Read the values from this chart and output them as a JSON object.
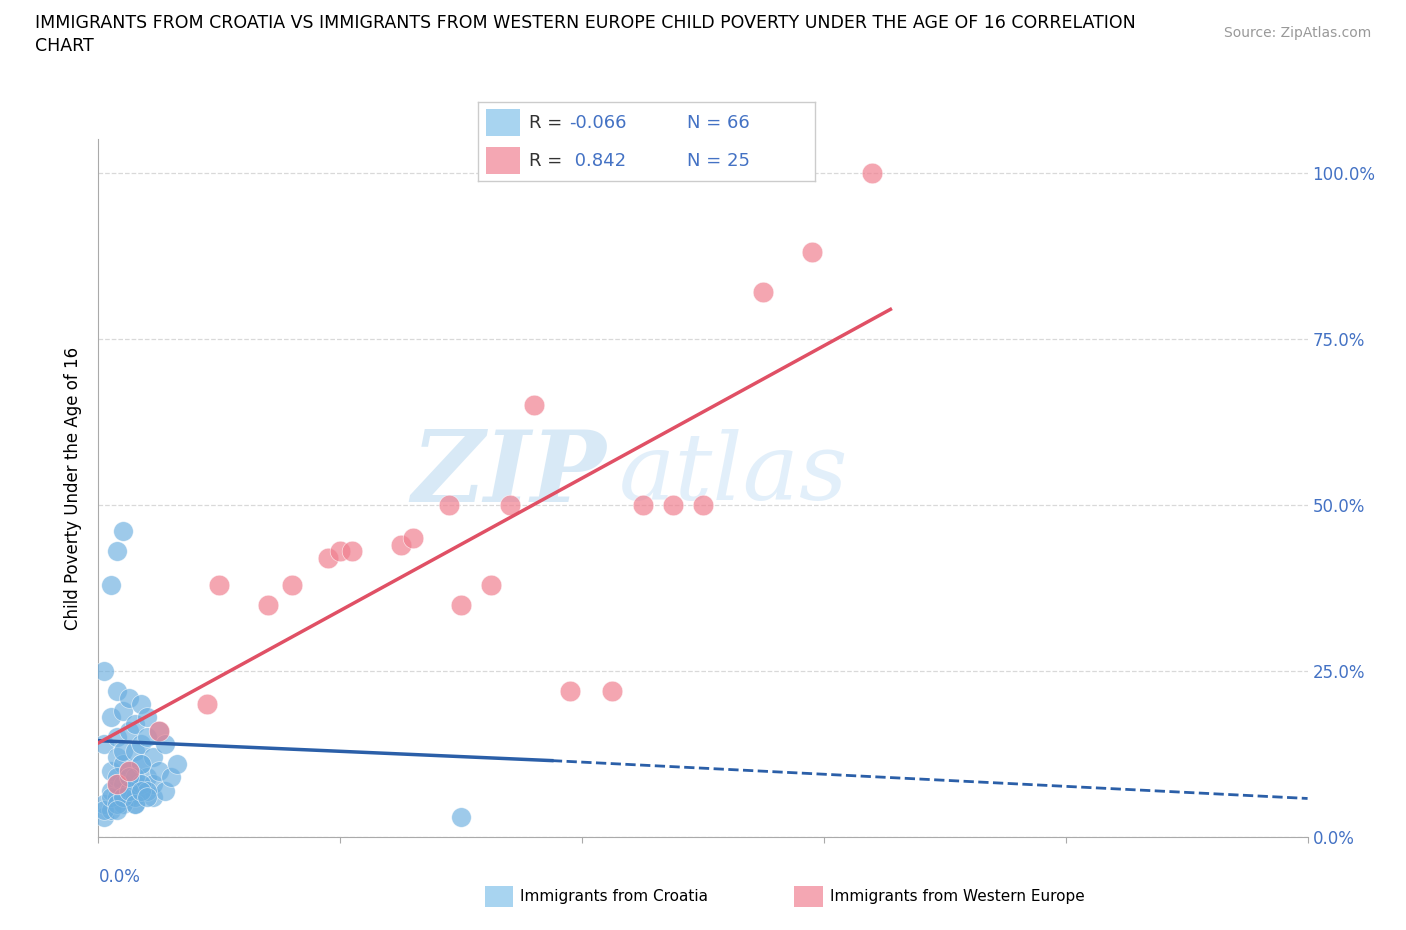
{
  "title_line1": "IMMIGRANTS FROM CROATIA VS IMMIGRANTS FROM WESTERN EUROPE CHILD POVERTY UNDER THE AGE OF 16 CORRELATION",
  "title_line2": "CHART",
  "source": "Source: ZipAtlas.com",
  "ylabel": "Child Poverty Under the Age of 16",
  "xlim": [
    0.0,
    0.2
  ],
  "ylim": [
    0.0,
    1.05
  ],
  "ytick_vals": [
    0.0,
    0.25,
    0.5,
    0.75,
    1.0
  ],
  "legend_labels": [
    "Immigrants from Croatia",
    "Immigrants from Western Europe"
  ],
  "legend_colors": [
    "#A8D4F0",
    "#F4A7B3"
  ],
  "r_croatia": -0.066,
  "n_croatia": 66,
  "r_western": 0.842,
  "n_western": 25,
  "blue_scatter_color": "#6AAEE0",
  "pink_scatter_color": "#F08090",
  "trendline_blue_color": "#2B5FA8",
  "trendline_pink_color": "#E05065",
  "grid_color": "#D0D0D0",
  "background_color": "#FFFFFF",
  "watermark_zip": "ZIP",
  "watermark_atlas": "atlas",
  "croatia_scatter_x": [
    0.001,
    0.002,
    0.002,
    0.003,
    0.003,
    0.003,
    0.003,
    0.004,
    0.004,
    0.004,
    0.004,
    0.005,
    0.005,
    0.005,
    0.005,
    0.006,
    0.006,
    0.006,
    0.006,
    0.007,
    0.007,
    0.007,
    0.007,
    0.008,
    0.008,
    0.008,
    0.009,
    0.009,
    0.009,
    0.01,
    0.01,
    0.011,
    0.011,
    0.012,
    0.013,
    0.001,
    0.001,
    0.002,
    0.002,
    0.003,
    0.003,
    0.004,
    0.004,
    0.005,
    0.005,
    0.006,
    0.006,
    0.007,
    0.007,
    0.008,
    0.001,
    0.002,
    0.003,
    0.003,
    0.004,
    0.005,
    0.005,
    0.006,
    0.007,
    0.008,
    0.001,
    0.002,
    0.003,
    0.004,
    0.06,
    0.003
  ],
  "croatia_scatter_y": [
    0.14,
    0.18,
    0.1,
    0.22,
    0.15,
    0.08,
    0.12,
    0.19,
    0.11,
    0.07,
    0.13,
    0.16,
    0.09,
    0.21,
    0.06,
    0.17,
    0.08,
    0.13,
    0.05,
    0.2,
    0.11,
    0.07,
    0.14,
    0.18,
    0.09,
    0.15,
    0.12,
    0.06,
    0.08,
    0.16,
    0.1,
    0.14,
    0.07,
    0.09,
    0.11,
    0.03,
    0.05,
    0.04,
    0.07,
    0.06,
    0.09,
    0.05,
    0.08,
    0.07,
    0.1,
    0.06,
    0.09,
    0.08,
    0.11,
    0.07,
    0.04,
    0.06,
    0.05,
    0.08,
    0.06,
    0.07,
    0.09,
    0.05,
    0.07,
    0.06,
    0.25,
    0.38,
    0.43,
    0.46,
    0.03,
    0.04
  ],
  "western_scatter_x": [
    0.003,
    0.005,
    0.01,
    0.018,
    0.02,
    0.028,
    0.032,
    0.038,
    0.04,
    0.042,
    0.05,
    0.052,
    0.058,
    0.06,
    0.065,
    0.068,
    0.072,
    0.078,
    0.085,
    0.09,
    0.095,
    0.1,
    0.11,
    0.118,
    0.128
  ],
  "western_scatter_y": [
    0.08,
    0.1,
    0.16,
    0.2,
    0.38,
    0.35,
    0.38,
    0.42,
    0.43,
    0.43,
    0.44,
    0.45,
    0.5,
    0.35,
    0.38,
    0.5,
    0.65,
    0.22,
    0.22,
    0.5,
    0.5,
    0.5,
    0.82,
    0.88,
    1.0
  ],
  "blue_trendline_x0": 0.0,
  "blue_trendline_y0": 0.145,
  "blue_trendline_x_solid_end": 0.075,
  "blue_trendline_y_solid_end": 0.115,
  "blue_trendline_x_dashed_end": 0.2,
  "blue_trendline_y_dashed_end": 0.058
}
